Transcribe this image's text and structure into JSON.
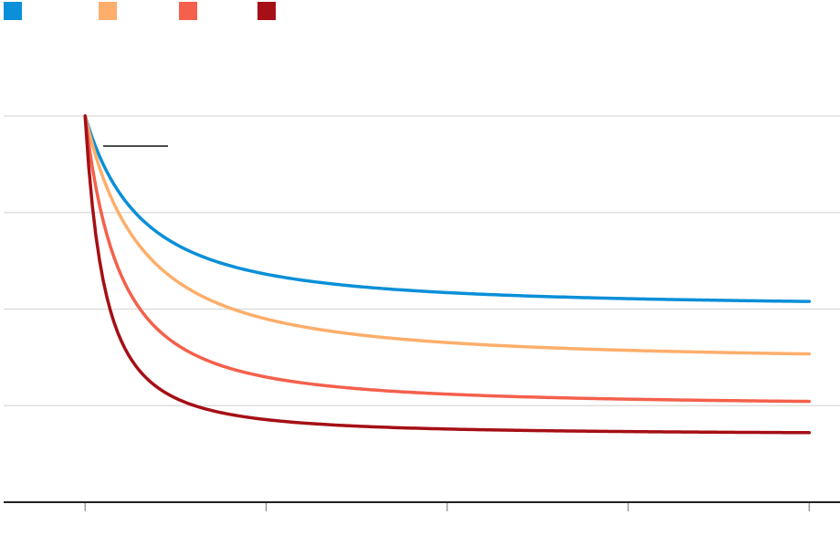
{
  "chart_data": {
    "type": "line",
    "title": "",
    "xlabel": "",
    "ylabel": "",
    "x": [
      0,
      1,
      2,
      3,
      4
    ],
    "xlim": [
      -0.45,
      4.17
    ],
    "ylim": [
      0,
      100
    ],
    "y_gridlines": [
      25,
      50,
      75,
      100
    ],
    "x_ticks": [
      0,
      1,
      2,
      3,
      4
    ],
    "grid": true,
    "legend": "top-left",
    "series": [
      {
        "color": "#0a8fd8",
        "start": 100,
        "end": 50.5,
        "rate": 8
      },
      {
        "color": "#fdae6b",
        "start": 100,
        "end": 36.5,
        "rate": 8
      },
      {
        "color": "#f4604c",
        "start": 100,
        "end": 25,
        "rate": 13
      },
      {
        "color": "#a50f15",
        "start": 100,
        "end": 17.5,
        "rate": 23
      }
    ]
  }
}
